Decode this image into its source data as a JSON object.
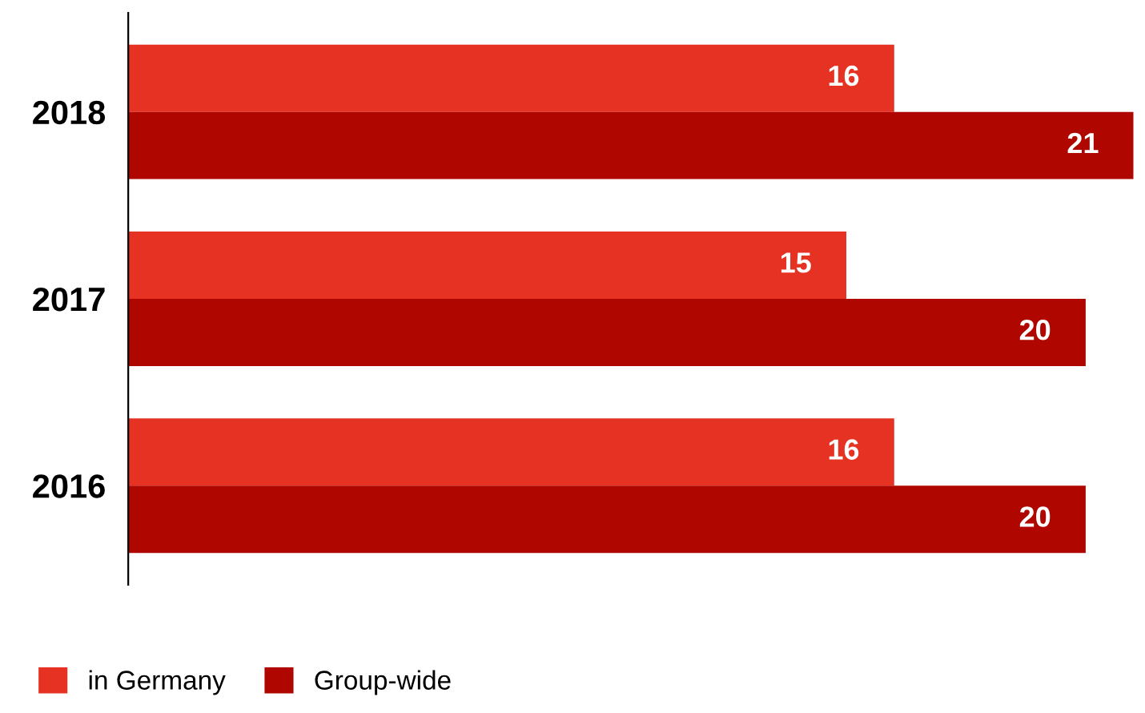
{
  "chart_data": {
    "type": "bar",
    "orientation": "horizontal",
    "categories": [
      "2018",
      "2017",
      "2016"
    ],
    "series": [
      {
        "name": "in Germany",
        "color": "#e53222",
        "values": [
          16,
          15,
          16
        ]
      },
      {
        "name": "Group-wide",
        "color": "#b00600",
        "values": [
          21,
          20,
          20
        ]
      }
    ],
    "data_labels": true,
    "legend": "bottom left",
    "grid": false
  }
}
